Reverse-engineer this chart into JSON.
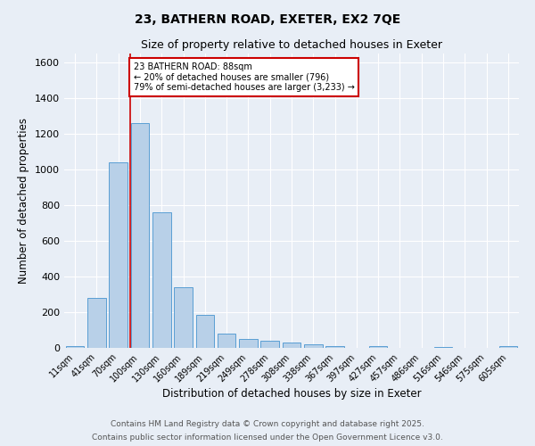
{
  "title1": "23, BATHERN ROAD, EXETER, EX2 7QE",
  "title2": "Size of property relative to detached houses in Exeter",
  "xlabel": "Distribution of detached houses by size in Exeter",
  "ylabel": "Number of detached properties",
  "categories": [
    "11sqm",
    "41sqm",
    "70sqm",
    "100sqm",
    "130sqm",
    "160sqm",
    "189sqm",
    "219sqm",
    "249sqm",
    "278sqm",
    "308sqm",
    "338sqm",
    "367sqm",
    "397sqm",
    "427sqm",
    "457sqm",
    "486sqm",
    "516sqm",
    "546sqm",
    "575sqm",
    "605sqm"
  ],
  "values": [
    10,
    280,
    1040,
    1260,
    760,
    340,
    185,
    80,
    48,
    38,
    28,
    18,
    10,
    0,
    8,
    0,
    0,
    7,
    0,
    0,
    8
  ],
  "bar_color": "#b8d0e8",
  "bar_edge_color": "#5a9fd4",
  "background_color": "#e8eef6",
  "grid_color": "#ffffff",
  "red_line_x": 2.55,
  "annotation_text": "23 BATHERN ROAD: 88sqm\n← 20% of detached houses are smaller (796)\n79% of semi-detached houses are larger (3,233) →",
  "annotation_box_color": "#ffffff",
  "annotation_box_edge": "#cc0000",
  "ylim": [
    0,
    1650
  ],
  "yticks": [
    0,
    200,
    400,
    600,
    800,
    1000,
    1200,
    1400,
    1600
  ],
  "footer1": "Contains HM Land Registry data © Crown copyright and database right 2025.",
  "footer2": "Contains public sector information licensed under the Open Government Licence v3.0."
}
